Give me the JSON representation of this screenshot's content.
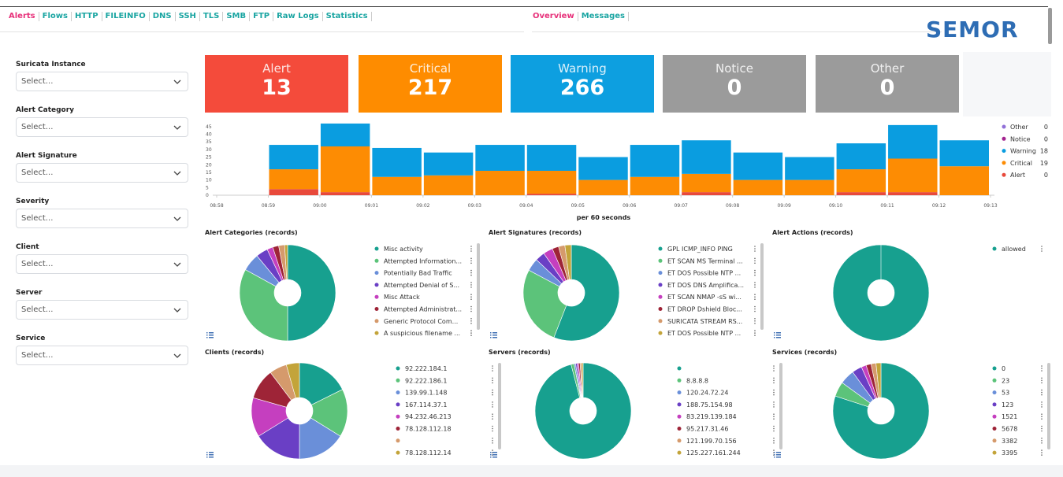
{
  "nav": {
    "tabs": [
      "Alerts",
      "Flows",
      "HTTP",
      "FILEINFO",
      "DNS",
      "SSH",
      "TLS",
      "SMB",
      "FTP",
      "Raw Logs",
      "Statistics"
    ],
    "active": 0,
    "right_tabs": [
      "Overview",
      "Messages"
    ],
    "right_active": 0
  },
  "logo": "SEMOR",
  "filters": [
    {
      "label": "Suricata Instance",
      "placeholder": "Select..."
    },
    {
      "label": "Alert Category",
      "placeholder": "Select..."
    },
    {
      "label": "Alert Signature",
      "placeholder": "Select..."
    },
    {
      "label": "Severity",
      "placeholder": "Select..."
    },
    {
      "label": "Client",
      "placeholder": "Select..."
    },
    {
      "label": "Server",
      "placeholder": "Select..."
    },
    {
      "label": "Service",
      "placeholder": "Select..."
    }
  ],
  "metrics": [
    {
      "label": "Alert",
      "value": 13,
      "color": "#f44b3b"
    },
    {
      "label": "Critical",
      "value": 217,
      "color": "#fe8c00"
    },
    {
      "label": "Warning",
      "value": 266,
      "color": "#0d9fe0"
    },
    {
      "label": "Notice",
      "value": 0,
      "color": "#9b9b9b"
    },
    {
      "label": "Other",
      "value": 0,
      "color": "#9b9b9b"
    }
  ],
  "chart_data": [
    {
      "type": "bar",
      "stacked": true,
      "xlabel": "per 60 seconds",
      "categories": [
        "08:58",
        "08:59",
        "09:00",
        "09:01",
        "09:02",
        "09:03",
        "09:04",
        "09:05",
        "09:06",
        "09:07",
        "09:08",
        "09:09",
        "09:10",
        "09:11",
        "09:12",
        "09:13"
      ],
      "ylim": [
        0,
        48
      ],
      "yticks": [
        0,
        5,
        10,
        15,
        20,
        25,
        30,
        35,
        40,
        45
      ],
      "series": [
        {
          "name": "Alert",
          "color": "#e8493b",
          "legend_value": 0,
          "values": [
            null,
            4,
            2,
            0,
            0,
            0,
            1,
            0,
            0,
            2,
            0,
            0,
            2,
            2,
            0,
            null
          ]
        },
        {
          "name": "Critical",
          "color": "#fd8c03",
          "legend_value": 19,
          "values": [
            null,
            13,
            30,
            12,
            13,
            16,
            15,
            10,
            12,
            12,
            10,
            10,
            15,
            22,
            19,
            null
          ]
        },
        {
          "name": "Warning",
          "color": "#0a9de0",
          "legend_value": 18,
          "values": [
            null,
            16,
            15,
            19,
            15,
            17,
            17,
            15,
            21,
            22,
            18,
            15,
            17,
            22,
            17,
            null
          ]
        },
        {
          "name": "Notice",
          "color": "#a3238f",
          "legend_value": 0,
          "values": [
            null,
            0,
            0,
            0,
            0,
            0,
            0,
            0,
            0,
            0,
            0,
            0,
            0,
            0,
            0,
            null
          ]
        },
        {
          "name": "Other",
          "color": "#9170d8",
          "legend_value": 0,
          "values": [
            null,
            0,
            0,
            0,
            0,
            0,
            0,
            0,
            0,
            0,
            0,
            0,
            0,
            0,
            0,
            null
          ]
        }
      ]
    },
    {
      "type": "pie",
      "donut": true,
      "title": "Alert Categories (records)",
      "categories": [
        "Misc activity",
        "Attempted Information...",
        "Potentially Bad Traffic",
        "Attempted Denial of S...",
        "Misc Attack",
        "Attempted Administrat...",
        "Generic Protocol Com...",
        "A suspicious filename ..."
      ],
      "values": [
        50,
        33,
        6,
        4,
        2,
        2,
        2,
        1
      ],
      "colors": [
        "#17a08f",
        "#5cc37a",
        "#6a8fd9",
        "#6a3fc5",
        "#c53fbf",
        "#9e2437",
        "#d59a6c",
        "#c3a43a"
      ]
    },
    {
      "type": "pie",
      "donut": true,
      "title": "Alert Signatures (records)",
      "categories": [
        "GPL ICMP_INFO PING",
        "ET SCAN MS Terminal ...",
        "ET DOS Possible NTP ...",
        "ET DOS DNS Amplifica...",
        "ET SCAN NMAP -sS wi...",
        "ET DROP Dshield Bloc...",
        "SURICATA STREAM RS...",
        "ET DOS Possible NTP ..."
      ],
      "values": [
        52,
        25,
        4,
        3,
        3,
        2,
        2,
        2
      ],
      "colors": [
        "#17a08f",
        "#5cc37a",
        "#6a8fd9",
        "#6a3fc5",
        "#c53fbf",
        "#9e2437",
        "#d59a6c",
        "#c3a43a"
      ]
    },
    {
      "type": "pie",
      "donut": true,
      "title": "Alert Actions (records)",
      "categories": [
        "allowed"
      ],
      "values": [
        100
      ],
      "colors": [
        "#17a08f"
      ]
    },
    {
      "type": "pie",
      "donut": true,
      "title": "Clients (records)",
      "categories": [
        "92.222.184.1",
        "92.222.186.1",
        "139.99.1.148",
        "167.114.37.1",
        "94.232.46.213",
        "78.128.112.18",
        null,
        "78.128.112.14"
      ],
      "values": [
        12,
        11,
        11,
        11,
        9,
        7,
        4,
        3
      ],
      "colors": [
        "#17a08f",
        "#5cc37a",
        "#6a8fd9",
        "#6a3fc5",
        "#c53fbf",
        "#9e2437",
        "#d59a6c",
        "#c3a43a"
      ]
    },
    {
      "type": "pie",
      "donut": true,
      "title": "Servers (records)",
      "categories": [
        null,
        "8.8.8.8",
        "120.24.72.24",
        "188.75.154.98",
        "83.219.139.184",
        "95.217.31.46",
        "121.199.70.156",
        "125.227.161.244"
      ],
      "values": [
        95,
        1,
        0.5,
        0.5,
        0.5,
        0.5,
        0.5,
        0.5
      ],
      "colors": [
        "#17a08f",
        "#5cc37a",
        "#6a8fd9",
        "#6a3fc5",
        "#c53fbf",
        "#9e2437",
        "#d59a6c",
        "#c3a43a"
      ]
    },
    {
      "type": "pie",
      "donut": true,
      "title": "Services (records)",
      "categories": [
        "0",
        "23",
        "53",
        "123",
        "1521",
        "5678",
        "3382",
        "3395"
      ],
      "values": [
        48,
        3,
        3,
        2,
        1,
        1,
        1,
        1
      ],
      "colors": [
        "#17a08f",
        "#5cc37a",
        "#6a8fd9",
        "#6a3fc5",
        "#c53fbf",
        "#9e2437",
        "#d59a6c",
        "#c3a43a"
      ]
    }
  ]
}
